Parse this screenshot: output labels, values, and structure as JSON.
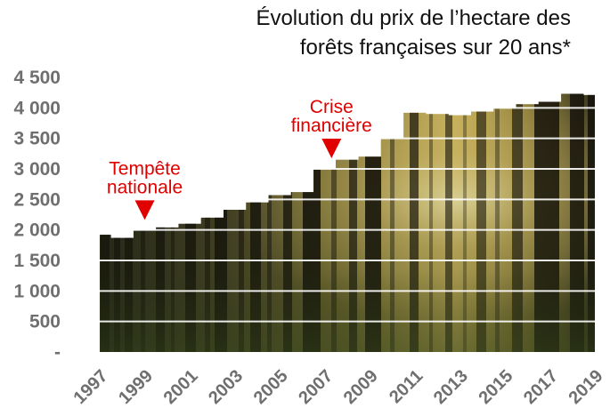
{
  "chart_data": {
    "type": "area",
    "title": [
      "Évolution du prix de l’hectare des",
      "forêts françaises sur 20 ans*"
    ],
    "xlabel": "",
    "ylabel": "",
    "x": [
      1997,
      1998,
      1999,
      2000,
      2001,
      2002,
      2003,
      2004,
      2005,
      2006,
      2007,
      2008,
      2009,
      2010,
      2011,
      2012,
      2013,
      2014,
      2015,
      2016,
      2017,
      2018,
      2019
    ],
    "values": [
      1920,
      1870,
      1990,
      2040,
      2100,
      2200,
      2330,
      2450,
      2570,
      2620,
      3000,
      3150,
      3200,
      3500,
      3920,
      3900,
      3880,
      3940,
      4000,
      4060,
      4100,
      4230,
      4210
    ],
    "ylim": [
      0,
      4500
    ],
    "y_ticks": [
      0,
      500,
      1000,
      1500,
      2000,
      2500,
      3000,
      3500,
      4000,
      4500
    ],
    "y_tick_labels": [
      "-",
      "500",
      "1 000",
      "1 500",
      "2 000",
      "2 500",
      "3 000",
      "3 500",
      "4 000",
      "4 500"
    ],
    "x_tick_labels": [
      "1997",
      "1999",
      "2001",
      "2003",
      "2005",
      "2007",
      "2009",
      "2011",
      "2013",
      "2015",
      "2017",
      "2019"
    ],
    "grid": true,
    "fill_style": "forest-photo",
    "annotations": [
      {
        "lines": [
          "Tempête",
          "nationale"
        ],
        "x": 1999,
        "color": "#e00000"
      },
      {
        "lines": [
          "Crise",
          "financière"
        ],
        "x": 2007.3,
        "color": "#e00000"
      }
    ]
  }
}
